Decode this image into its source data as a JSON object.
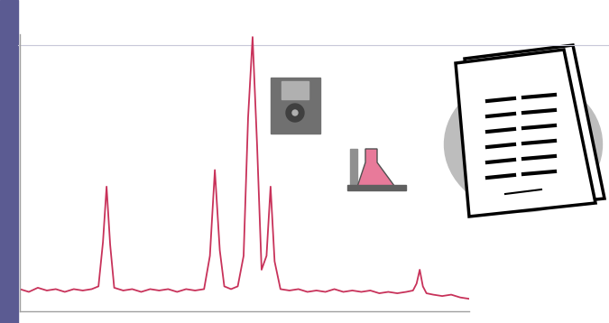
{
  "chart_data": {
    "type": "line",
    "x": [
      0,
      2,
      4,
      6,
      8,
      10,
      12,
      14,
      16,
      17.5,
      18.5,
      19.3,
      20.1,
      21,
      23,
      25,
      27,
      29,
      31,
      33,
      35,
      37,
      39,
      41,
      42.3,
      43.4,
      44.5,
      45.5,
      47,
      48.5,
      49.8,
      50.8,
      51.8,
      52.8,
      53.8,
      54.9,
      55.8,
      56.7,
      58,
      60,
      62,
      64,
      66,
      68,
      70,
      72,
      74,
      76,
      78,
      80,
      82,
      84,
      86,
      87.5,
      88.3,
      89,
      89.7,
      90.5,
      92,
      94,
      96,
      98,
      100
    ],
    "values": [
      8,
      7,
      8.5,
      7.5,
      8,
      7,
      8,
      7.5,
      8,
      9,
      25,
      45,
      24,
      8.5,
      7.5,
      8,
      7,
      8,
      7.5,
      8,
      7,
      8,
      7.5,
      8,
      20,
      51,
      22,
      9,
      8,
      9,
      20,
      70,
      99,
      60,
      15,
      20,
      45,
      18,
      8,
      7.5,
      8,
      7,
      7.5,
      7,
      8,
      7,
      7.5,
      7,
      7.5,
      6.5,
      7,
      6.5,
      7,
      7.5,
      10,
      15,
      9,
      6.5,
      6,
      5.5,
      6,
      5,
      4.5
    ],
    "color": "#c8325a",
    "xlim": [
      0,
      100
    ],
    "ylim": [
      0,
      100
    ],
    "xticks": [],
    "yticks": [],
    "tick_labels": false,
    "grid": false
  }
}
